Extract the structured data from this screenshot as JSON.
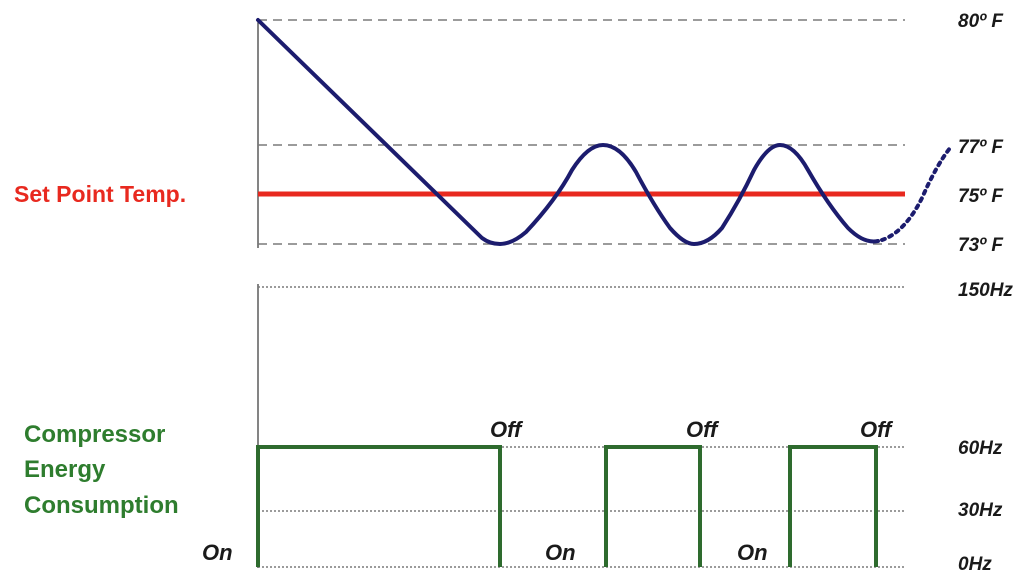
{
  "colors": {
    "temperature_curve": "#1c1c6e",
    "set_point_line": "#e8291f",
    "compressor_trace": "#2e6b2e",
    "compressor_label": "#2e7d2e",
    "gridline": "#7a7a7a"
  },
  "temperature_panel": {
    "set_point_label": "Set Point Temp.",
    "ticks": [
      {
        "value": 80,
        "label": "80º F"
      },
      {
        "value": 77,
        "label": "77º F"
      },
      {
        "value": 75,
        "label": "75º F"
      },
      {
        "value": 73,
        "label": "73º F"
      }
    ],
    "set_point_value": 75,
    "trend_continues": true
  },
  "compressor_panel": {
    "label_lines": [
      "Compressor",
      "Energy",
      "Consumption"
    ],
    "ticks": [
      {
        "value": 150,
        "label": "150Hz"
      },
      {
        "value": 60,
        "label": "60Hz"
      },
      {
        "value": 30,
        "label": "30Hz"
      },
      {
        "value": 0,
        "label": "0Hz"
      }
    ],
    "on_label": "On",
    "off_label": "Off",
    "cycles": [
      {
        "on_label": "On",
        "off_label": "Off"
      },
      {
        "on_label": "On",
        "off_label": "Off"
      },
      {
        "on_label": "On",
        "off_label": "Off"
      }
    ]
  }
}
